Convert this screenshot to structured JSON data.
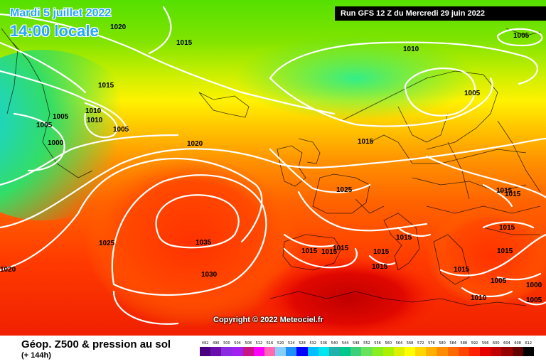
{
  "header": {
    "date": "Mardi 5 juillet 2022",
    "time": "14:00 locale",
    "run": "Run GFS 12 Z du Mercredi 29 juin 2022"
  },
  "map": {
    "isobar_labels": [
      "1020",
      "1015",
      "1010",
      "1005",
      "1005",
      "1015",
      "1010",
      "1010",
      "1005",
      "1005",
      "1005",
      "1000",
      "1020",
      "1015",
      "1025",
      "1015",
      "1015",
      "1030",
      "1035",
      "1025",
      "1020",
      "1015",
      "1015",
      "1015",
      "1015",
      "1015",
      "1015",
      "1015",
      "1015",
      "1015",
      "1010",
      "1005",
      "1005",
      "1000"
    ],
    "copyright": "Copyright © 2022 Meteociel.fr"
  },
  "footer": {
    "title": "Géop. Z500 & pression au sol",
    "subtitle": "(+ 144h)"
  },
  "scale": {
    "labels": [
      "492",
      "496",
      "500",
      "504",
      "508",
      "512",
      "516",
      "520",
      "524",
      "528",
      "532",
      "536",
      "540",
      "544",
      "548",
      "552",
      "556",
      "560",
      "564",
      "568",
      "572",
      "576",
      "580",
      "584",
      "588",
      "592",
      "596",
      "600",
      "604",
      "608",
      "612"
    ],
    "colors": [
      "#4b0082",
      "#6a0dad",
      "#8a2be2",
      "#a020f0",
      "#c71585",
      "#ff00ff",
      "#ff69b4",
      "#87cefa",
      "#1e90ff",
      "#0000ff",
      "#00bfff",
      "#00e5ee",
      "#20b2aa",
      "#00c78c",
      "#3cd07a",
      "#66e35a",
      "#88ee22",
      "#aaf000",
      "#ddf000",
      "#ffff00",
      "#ffd700",
      "#ffb000",
      "#ff8c00",
      "#ff6a00",
      "#ff4500",
      "#ff2000",
      "#e60000",
      "#c00000",
      "#990000",
      "#660000",
      "#000000"
    ]
  }
}
